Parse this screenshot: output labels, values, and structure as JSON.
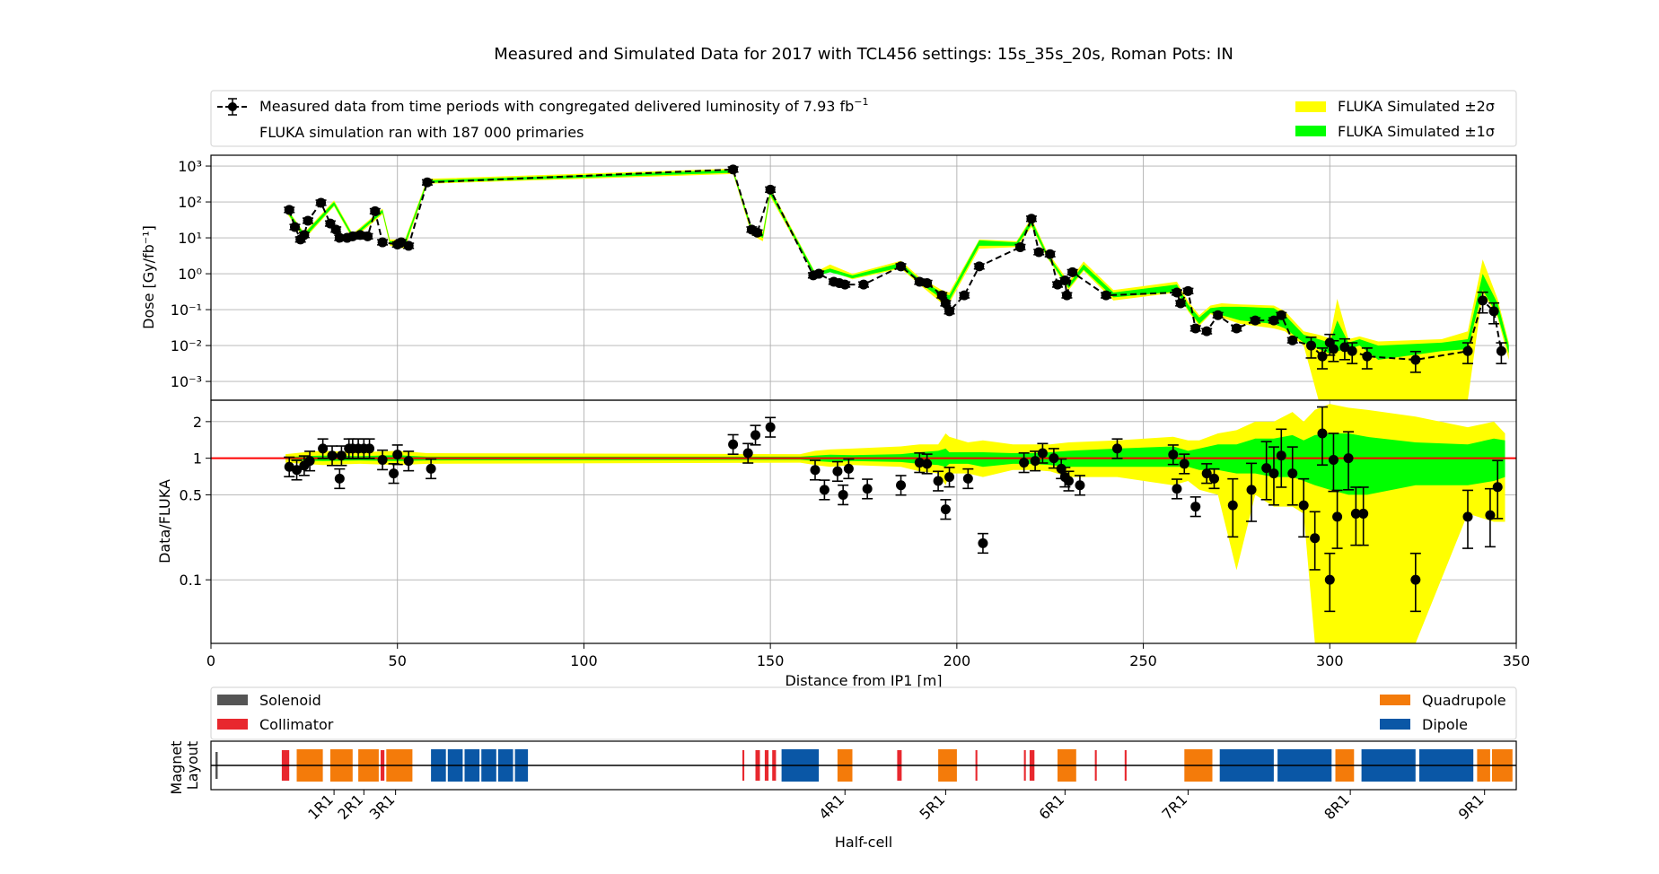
{
  "title": "Measured and Simulated Data for 2017 with TCL456 settings: 15s_35s_20s, Roman Pots: IN",
  "legend_top": {
    "measured_label": "Measured data from time periods with congregated delivered luminosity of 7.93 fb",
    "measured_label_sup": "−1",
    "fluka_note": "FLUKA simulation ran with 187 000 primaries",
    "band2_label": "FLUKA Simulated ±2σ",
    "band1_label": "FLUKA Simulated ±1σ"
  },
  "legend_magnet": {
    "solenoid": "Solenoid",
    "collimator": "Collimator",
    "quadrupole": "Quadrupole",
    "dipole": "Dipole"
  },
  "colors": {
    "band2": "#ffff00",
    "band1": "#00ff00",
    "data": "#000000",
    "ref_line": "#ff0000",
    "solenoid": "#555555",
    "collimator": "#e8282e",
    "quadrupole": "#f47b0a",
    "dipole": "#0a57a6"
  },
  "chart_data": [
    {
      "type": "scatter",
      "panel": "dose",
      "ylabel": "Dose [Gy/fb⁻¹]",
      "yscale": "log",
      "ylim": [
        0.0003,
        2000
      ],
      "y_ticks": [
        {
          "value": 0.001,
          "label": "10⁻³"
        },
        {
          "value": 0.01,
          "label": "10⁻²"
        },
        {
          "value": 0.1,
          "label": "10⁻¹"
        },
        {
          "value": 1,
          "label": "10⁰"
        },
        {
          "value": 10,
          "label": "10¹"
        },
        {
          "value": 100,
          "label": "10²"
        },
        {
          "value": 1000,
          "label": "10³"
        }
      ],
      "grid": true,
      "x": [
        21,
        22.5,
        24,
        25,
        26,
        29.5,
        32,
        33.5,
        34.5,
        36.5,
        38,
        40,
        42,
        44,
        46,
        50,
        51,
        53,
        58,
        140,
        145,
        146.5,
        150,
        161.5,
        163,
        167,
        168.5,
        170,
        175,
        185,
        190,
        192,
        196,
        197,
        198,
        202,
        206,
        217,
        220,
        222,
        225,
        227,
        229,
        229.5,
        231,
        240,
        259,
        260,
        262,
        264,
        267,
        270,
        275,
        280,
        285,
        287,
        290,
        295,
        298,
        300,
        301,
        304,
        306,
        310,
        323,
        337,
        341,
        344,
        346
      ],
      "measured": [
        60,
        20,
        9,
        12,
        30,
        95,
        25,
        17,
        10,
        10,
        11,
        12,
        11,
        55,
        7.5,
        6.5,
        7.5,
        6,
        350,
        800,
        17,
        14,
        220,
        0.9,
        1,
        0.6,
        0.55,
        0.5,
        0.5,
        1.6,
        0.6,
        0.55,
        0.25,
        0.15,
        0.09,
        0.25,
        1.6,
        5.5,
        34,
        4,
        3.5,
        0.5,
        0.65,
        0.25,
        1.1,
        0.25,
        0.3,
        0.15,
        0.33,
        0.03,
        0.025,
        0.07,
        0.03,
        0.05,
        0.05,
        0.07,
        0.014,
        0.01,
        0.005,
        0.012,
        0.008,
        0.009,
        0.007,
        0.005,
        0.004,
        0.007,
        0.18,
        0.09,
        0.007
      ],
      "band_x": [
        20,
        25,
        33,
        38,
        46,
        48,
        52,
        58,
        140,
        145,
        148,
        150,
        162,
        166,
        172,
        185,
        190,
        196,
        198,
        206,
        216,
        220,
        224,
        230,
        234,
        242,
        259,
        262,
        265,
        268,
        271,
        276,
        285,
        288,
        293,
        297,
        300,
        302,
        305,
        308,
        313,
        330,
        337,
        341,
        345,
        348
      ],
      "band1": [
        [
          60,
          70
        ],
        [
          10,
          13
        ],
        [
          80,
          100
        ],
        [
          10,
          12
        ],
        [
          50,
          60
        ],
        [
          7,
          8
        ],
        [
          6,
          8
        ],
        [
          340,
          400
        ],
        [
          650,
          780
        ],
        [
          14,
          18
        ],
        [
          10,
          13
        ],
        [
          160,
          210
        ],
        [
          0.85,
          1.05
        ],
        [
          1.1,
          1.4
        ],
        [
          0.75,
          0.9
        ],
        [
          1.5,
          2
        ],
        [
          0.55,
          0.7
        ],
        [
          0.2,
          0.3
        ],
        [
          0.18,
          0.25
        ],
        [
          6,
          8.5
        ],
        [
          6,
          7.5
        ],
        [
          23,
          32
        ],
        [
          3.2,
          4
        ],
        [
          0.4,
          0.5
        ],
        [
          1.3,
          1.8
        ],
        [
          0.22,
          0.3
        ],
        [
          0.32,
          0.5
        ],
        [
          0.1,
          0.14
        ],
        [
          0.04,
          0.06
        ],
        [
          0.08,
          0.11
        ],
        [
          0.07,
          0.12
        ],
        [
          0.05,
          0.12
        ],
        [
          0.04,
          0.11
        ],
        [
          0.03,
          0.07
        ],
        [
          0.012,
          0.02
        ],
        [
          0.008,
          0.015
        ],
        [
          0.006,
          0.012
        ],
        [
          0.007,
          0.05
        ],
        [
          0.008,
          0.012
        ],
        [
          0.01,
          0.015
        ],
        [
          0.004,
          0.01
        ],
        [
          0.007,
          0.012
        ],
        [
          0.008,
          0.015
        ],
        [
          0.35,
          1
        ],
        [
          0.07,
          0.15
        ],
        [
          0.006,
          0.01
        ]
      ],
      "band2": [
        [
          55,
          75
        ],
        [
          9,
          14
        ],
        [
          75,
          110
        ],
        [
          9,
          13
        ],
        [
          45,
          65
        ],
        [
          6,
          9
        ],
        [
          5,
          9
        ],
        [
          320,
          440
        ],
        [
          600,
          850
        ],
        [
          12,
          20
        ],
        [
          8,
          15
        ],
        [
          140,
          240
        ],
        [
          0.8,
          1.1
        ],
        [
          1.2,
          1.8
        ],
        [
          0.7,
          1
        ],
        [
          1.4,
          2.3
        ],
        [
          0.5,
          0.8
        ],
        [
          0.15,
          0.35
        ],
        [
          0.15,
          0.3
        ],
        [
          5,
          9
        ],
        [
          5.5,
          8
        ],
        [
          20,
          36
        ],
        [
          3,
          4.5
        ],
        [
          0.35,
          0.6
        ],
        [
          1.2,
          2.2
        ],
        [
          0.18,
          0.35
        ],
        [
          0.3,
          0.6
        ],
        [
          0.09,
          0.17
        ],
        [
          0.035,
          0.07
        ],
        [
          0.075,
          0.13
        ],
        [
          0.06,
          0.15
        ],
        [
          0.04,
          0.14
        ],
        [
          0.03,
          0.13
        ],
        [
          0.025,
          0.09
        ],
        [
          0.01,
          0.025
        ],
        [
          0.0003,
          0.02
        ],
        [
          0.0003,
          0.016
        ],
        [
          0.0003,
          0.2
        ],
        [
          0.0003,
          0.015
        ],
        [
          0.0003,
          0.018
        ],
        [
          0.0003,
          0.013
        ],
        [
          0.0003,
          0.015
        ],
        [
          0.0003,
          0.025
        ],
        [
          0.3,
          2.5
        ],
        [
          0.06,
          0.2
        ],
        [
          0.004,
          0.012
        ]
      ]
    },
    {
      "type": "scatter",
      "panel": "ratio",
      "xlabel": "Distance from IP1 [m]",
      "ylabel": "Data/FLUKA",
      "yscale": "log",
      "ylim": [
        0.03,
        3
      ],
      "y_ticks": [
        {
          "value": 0.1,
          "label": "0.1"
        },
        {
          "value": 0.5,
          "label": "0.5"
        },
        {
          "value": 1,
          "label": "1"
        },
        {
          "value": 2,
          "label": "2"
        }
      ],
      "xlim": [
        0,
        350
      ],
      "x_ticks": [
        0,
        50,
        100,
        150,
        200,
        250,
        300,
        350
      ],
      "grid": true,
      "reference_line": 1,
      "x": [
        21,
        23,
        25,
        26.5,
        30,
        32.5,
        34.5,
        35,
        37,
        38,
        39.5,
        41,
        42.5,
        46,
        49,
        50,
        53,
        59,
        140,
        144,
        146,
        150,
        162,
        164.5,
        168,
        169.5,
        171,
        176,
        185,
        190,
        192,
        195,
        197,
        198,
        203,
        207,
        218,
        221,
        223,
        226,
        228,
        229,
        230,
        233,
        243,
        258,
        259,
        261,
        264,
        267,
        269,
        274,
        279,
        283,
        285,
        287,
        290,
        293,
        296,
        298,
        300,
        301,
        302,
        305,
        307,
        309,
        323,
        337,
        343,
        345
      ],
      "ratio": [
        0.85,
        0.8,
        0.87,
        0.95,
        1.2,
        1.05,
        0.68,
        1.05,
        1.2,
        1.2,
        1.2,
        1.2,
        1.2,
        0.97,
        0.75,
        1.07,
        0.95,
        0.82,
        1.3,
        1.1,
        1.55,
        1.8,
        0.8,
        0.55,
        0.78,
        0.5,
        0.82,
        0.56,
        0.6,
        0.92,
        0.9,
        0.65,
        0.38,
        0.7,
        0.68,
        0.2,
        0.92,
        0.95,
        1.1,
        1,
        0.82,
        0.7,
        0.65,
        0.6,
        1.2,
        1.07,
        0.56,
        0.9,
        0.4,
        0.75,
        0.68,
        0.41,
        0.55,
        0.83,
        0.75,
        1.05,
        0.75,
        0.41,
        0.22,
        1.6,
        0.1,
        0.97,
        0.33,
        1,
        0.35,
        0.35,
        0.1,
        0.33,
        0.34,
        0.58
      ],
      "band_x": [
        20,
        25,
        30,
        40,
        50,
        58,
        158,
        162,
        166,
        172,
        185,
        190,
        195,
        197,
        198,
        203,
        207,
        215,
        220,
        225,
        230,
        243,
        258,
        262,
        265,
        270,
        275,
        280,
        285,
        290,
        293,
        296,
        300,
        305,
        310,
        323,
        337,
        344,
        347
      ],
      "band1": [
        [
          0.98,
          1.02
        ],
        [
          0.96,
          1.04
        ],
        [
          0.95,
          1.05
        ],
        [
          0.96,
          1.04
        ],
        [
          0.95,
          1.06
        ],
        [
          0.96,
          1.03
        ],
        [
          0.97,
          1.03
        ],
        [
          0.95,
          1.05
        ],
        [
          0.93,
          1.07
        ],
        [
          0.95,
          1.06
        ],
        [
          0.93,
          1.08
        ],
        [
          0.9,
          1.12
        ],
        [
          0.88,
          1.15
        ],
        [
          0.85,
          1.2
        ],
        [
          0.9,
          1.12
        ],
        [
          0.9,
          1.12
        ],
        [
          0.85,
          1.12
        ],
        [
          0.9,
          1.1
        ],
        [
          0.9,
          1.1
        ],
        [
          0.88,
          1.12
        ],
        [
          0.85,
          1.15
        ],
        [
          0.85,
          1.2
        ],
        [
          0.85,
          1.25
        ],
        [
          0.85,
          1.15
        ],
        [
          0.8,
          1.2
        ],
        [
          0.8,
          1.3
        ],
        [
          0.75,
          1.3
        ],
        [
          0.75,
          1.45
        ],
        [
          0.7,
          1.45
        ],
        [
          0.7,
          1.55
        ],
        [
          0.65,
          1.4
        ],
        [
          0.6,
          1.55
        ],
        [
          0.55,
          1.6
        ],
        [
          0.5,
          1.6
        ],
        [
          0.5,
          1.5
        ],
        [
          0.6,
          1.35
        ],
        [
          0.6,
          1.3
        ],
        [
          0.65,
          1.45
        ],
        [
          0.7,
          1.4
        ]
      ],
      "band2": [
        [
          0.92,
          1.08
        ],
        [
          0.9,
          1.12
        ],
        [
          0.88,
          1.15
        ],
        [
          0.9,
          1.12
        ],
        [
          0.88,
          1.15
        ],
        [
          0.9,
          1.1
        ],
        [
          0.92,
          1.08
        ],
        [
          0.88,
          1.15
        ],
        [
          0.85,
          1.18
        ],
        [
          0.88,
          1.2
        ],
        [
          0.85,
          1.25
        ],
        [
          0.78,
          1.3
        ],
        [
          0.75,
          1.3
        ],
        [
          0.6,
          1.6
        ],
        [
          0.75,
          1.5
        ],
        [
          0.75,
          1.35
        ],
        [
          0.7,
          1.4
        ],
        [
          0.8,
          1.3
        ],
        [
          0.8,
          1.3
        ],
        [
          0.78,
          1.3
        ],
        [
          0.7,
          1.35
        ],
        [
          0.7,
          1.4
        ],
        [
          0.6,
          1.5
        ],
        [
          0.65,
          1.4
        ],
        [
          0.55,
          1.4
        ],
        [
          0.5,
          1.6
        ],
        [
          0.12,
          1.7
        ],
        [
          0.5,
          2
        ],
        [
          0.4,
          2
        ],
        [
          0.4,
          2.4
        ],
        [
          0.35,
          2
        ],
        [
          0.03,
          2.5
        ],
        [
          0.03,
          2.8
        ],
        [
          0.03,
          2.6
        ],
        [
          0.03,
          2.5
        ],
        [
          0.03,
          2.2
        ],
        [
          0.35,
          1.8
        ],
        [
          0.3,
          2
        ],
        [
          0.3,
          1.6
        ]
      ]
    }
  ],
  "magnet_layout": {
    "ylabel": "Magnet\nLayout",
    "xlabel": "Half-cell",
    "xlim": [
      0,
      350
    ],
    "elements": [
      {
        "type": "solenoid",
        "start": 1.2,
        "end": 1.8
      },
      {
        "type": "collimator",
        "start": 19,
        "end": 21
      },
      {
        "type": "quadrupole",
        "start": 23,
        "end": 30
      },
      {
        "type": "quadrupole",
        "start": 32,
        "end": 38
      },
      {
        "type": "quadrupole",
        "start": 39.5,
        "end": 45
      },
      {
        "type": "collimator",
        "start": 45.5,
        "end": 46.5
      },
      {
        "type": "quadrupole",
        "start": 47,
        "end": 54
      },
      {
        "type": "dipole",
        "start": 59,
        "end": 63
      },
      {
        "type": "dipole",
        "start": 63.5,
        "end": 67.5
      },
      {
        "type": "dipole",
        "start": 68,
        "end": 72
      },
      {
        "type": "dipole",
        "start": 72.5,
        "end": 76.5
      },
      {
        "type": "dipole",
        "start": 77,
        "end": 81
      },
      {
        "type": "dipole",
        "start": 81.5,
        "end": 85
      },
      {
        "type": "collimator",
        "start": 142.5,
        "end": 143
      },
      {
        "type": "collimator",
        "start": 146,
        "end": 147.2
      },
      {
        "type": "collimator",
        "start": 148.5,
        "end": 149.5
      },
      {
        "type": "collimator",
        "start": 150.5,
        "end": 151.5
      },
      {
        "type": "dipole",
        "start": 153,
        "end": 163
      },
      {
        "type": "quadrupole",
        "start": 168,
        "end": 172
      },
      {
        "type": "collimator",
        "start": 184,
        "end": 185.2
      },
      {
        "type": "quadrupole",
        "start": 195,
        "end": 200
      },
      {
        "type": "collimator",
        "start": 205,
        "end": 205.5
      },
      {
        "type": "collimator",
        "start": 218,
        "end": 218.5
      },
      {
        "type": "collimator",
        "start": 219.5,
        "end": 220.8
      },
      {
        "type": "quadrupole",
        "start": 227,
        "end": 232
      },
      {
        "type": "collimator",
        "start": 237,
        "end": 237.5
      },
      {
        "type": "collimator",
        "start": 245,
        "end": 245.5
      },
      {
        "type": "quadrupole",
        "start": 261,
        "end": 268.5
      },
      {
        "type": "dipole",
        "start": 270.5,
        "end": 285
      },
      {
        "type": "dipole",
        "start": 286,
        "end": 300.5
      },
      {
        "type": "quadrupole",
        "start": 301.5,
        "end": 306.5
      },
      {
        "type": "dipole",
        "start": 308.5,
        "end": 323
      },
      {
        "type": "dipole",
        "start": 324,
        "end": 338.5
      },
      {
        "type": "quadrupole",
        "start": 339.5,
        "end": 343
      },
      {
        "type": "quadrupole",
        "start": 343.5,
        "end": 349
      }
    ],
    "halfcells": [
      {
        "label": "1R1",
        "x": 33
      },
      {
        "label": "2R1",
        "x": 41
      },
      {
        "label": "3R1",
        "x": 49.5
      },
      {
        "label": "4R1",
        "x": 170
      },
      {
        "label": "5R1",
        "x": 197
      },
      {
        "label": "6R1",
        "x": 229
      },
      {
        "label": "7R1",
        "x": 262
      },
      {
        "label": "8R1",
        "x": 305.5
      },
      {
        "label": "9R1",
        "x": 341.5
      }
    ]
  }
}
